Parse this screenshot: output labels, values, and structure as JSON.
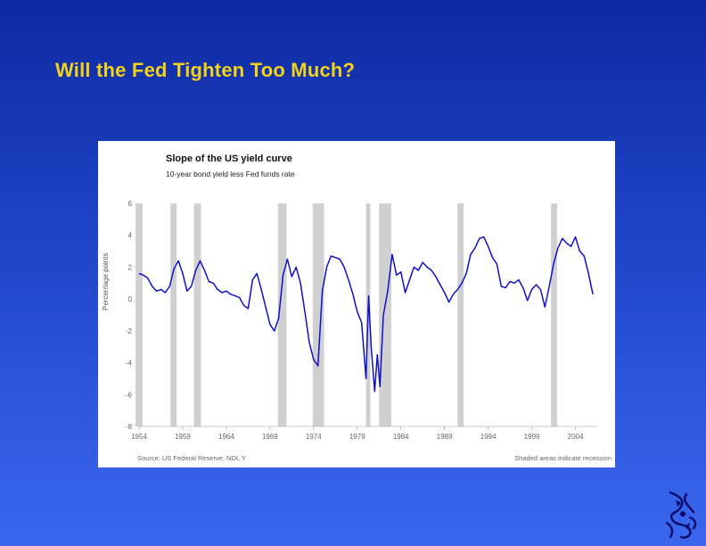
{
  "slide": {
    "title": "Will the Fed Tighten Too Much?"
  },
  "chart_data": {
    "type": "line",
    "title": "Slope of the US yield curve",
    "subtitle": "10-year bond yield less Fed funds rate",
    "ylabel": "Percentage points",
    "xlabel": "",
    "xlim": [
      1954,
      2006.5
    ],
    "ylim": [
      -8,
      6
    ],
    "y_ticks": [
      {
        "value": 6,
        "label": "6"
      },
      {
        "value": 4,
        "label": "4"
      },
      {
        "value": 2,
        "label": "2"
      },
      {
        "value": 0,
        "label": "0"
      },
      {
        "value": -2,
        "label": "-2"
      },
      {
        "value": -4,
        "label": "-4"
      },
      {
        "value": -6,
        "label": "-6"
      },
      {
        "value": -8,
        "label": "-8"
      }
    ],
    "x_ticks": [
      {
        "value": 1954,
        "label": "1954"
      },
      {
        "value": 1959,
        "label": "1959"
      },
      {
        "value": 1964,
        "label": "1964"
      },
      {
        "value": 1969,
        "label": "1969"
      },
      {
        "value": 1974,
        "label": "1974"
      },
      {
        "value": 1979,
        "label": "1979"
      },
      {
        "value": 1984,
        "label": "1984"
      },
      {
        "value": 1989,
        "label": "1989"
      },
      {
        "value": 1994,
        "label": "1994"
      },
      {
        "value": 1999,
        "label": "1999"
      },
      {
        "value": 2004,
        "label": "2004"
      }
    ],
    "recessions": [
      [
        1953.6,
        1954.4
      ],
      [
        1957.6,
        1958.3
      ],
      [
        1960.3,
        1961.1
      ],
      [
        1969.9,
        1970.9
      ],
      [
        1973.9,
        1975.2
      ],
      [
        1980.0,
        1980.5
      ],
      [
        1981.5,
        1982.9
      ],
      [
        1990.5,
        1991.2
      ],
      [
        2001.2,
        2001.9
      ]
    ],
    "series": [
      {
        "name": "10-year bond yield less Fed funds rate",
        "color": "#1010c8",
        "x": [
          1954.0,
          1954.5,
          1955.0,
          1955.5,
          1956.0,
          1956.5,
          1957.0,
          1957.5,
          1958.0,
          1958.5,
          1959.0,
          1959.5,
          1960.0,
          1960.5,
          1961.0,
          1961.5,
          1962.0,
          1962.5,
          1963.0,
          1963.5,
          1964.0,
          1964.5,
          1965.0,
          1965.5,
          1966.0,
          1966.5,
          1967.0,
          1967.5,
          1968.0,
          1968.5,
          1969.0,
          1969.5,
          1970.0,
          1970.5,
          1971.0,
          1971.5,
          1972.0,
          1972.5,
          1973.0,
          1973.5,
          1974.0,
          1974.5,
          1975.0,
          1975.5,
          1976.0,
          1976.5,
          1977.0,
          1977.5,
          1978.0,
          1978.5,
          1979.0,
          1979.5,
          1980.0,
          1980.3,
          1980.6,
          1981.0,
          1981.3,
          1981.6,
          1982.0,
          1982.5,
          1983.0,
          1983.5,
          1984.0,
          1984.5,
          1985.0,
          1985.5,
          1986.0,
          1986.5,
          1987.0,
          1987.5,
          1988.0,
          1988.5,
          1989.0,
          1989.5,
          1990.0,
          1990.5,
          1991.0,
          1991.5,
          1992.0,
          1992.5,
          1993.0,
          1993.5,
          1994.0,
          1994.5,
          1995.0,
          1995.5,
          1996.0,
          1996.5,
          1997.0,
          1997.5,
          1998.0,
          1998.5,
          1999.0,
          1999.5,
          2000.0,
          2000.5,
          2001.0,
          2001.5,
          2002.0,
          2002.5,
          2003.0,
          2003.5,
          2004.0,
          2004.5,
          2005.0,
          2005.5,
          2006.0
        ],
        "values": [
          1.6,
          1.5,
          1.3,
          0.8,
          0.5,
          0.6,
          0.4,
          0.8,
          1.9,
          2.4,
          1.6,
          0.5,
          0.8,
          1.8,
          2.4,
          1.8,
          1.1,
          1.0,
          0.6,
          0.4,
          0.5,
          0.3,
          0.2,
          0.1,
          -0.4,
          -0.6,
          1.2,
          1.6,
          0.6,
          -0.5,
          -1.6,
          -2.0,
          -1.2,
          1.5,
          2.5,
          1.4,
          2.0,
          1.0,
          -0.8,
          -2.7,
          -3.8,
          -4.2,
          0.5,
          2.0,
          2.7,
          2.6,
          2.5,
          2.0,
          1.2,
          0.3,
          -0.8,
          -1.5,
          -5.0,
          0.2,
          -3.0,
          -5.8,
          -3.5,
          -5.5,
          -1.0,
          0.5,
          2.8,
          1.5,
          1.7,
          0.4,
          1.2,
          2.0,
          1.8,
          2.3,
          2.0,
          1.8,
          1.4,
          0.9,
          0.4,
          -0.2,
          0.3,
          0.6,
          1.0,
          1.6,
          2.8,
          3.2,
          3.8,
          3.9,
          3.3,
          2.6,
          2.2,
          0.8,
          0.7,
          1.1,
          1.0,
          1.2,
          0.7,
          -0.1,
          0.6,
          0.9,
          0.6,
          -0.5,
          0.8,
          2.2,
          3.2,
          3.8,
          3.5,
          3.3,
          3.9,
          3.0,
          2.7,
          1.6,
          0.3
        ]
      }
    ],
    "source_text": "Source: US Federal Reserve, NDL Y",
    "note_text": "Shaded areas indicate recession"
  },
  "branding": {
    "logo_icon": "firm-logo-icon"
  }
}
